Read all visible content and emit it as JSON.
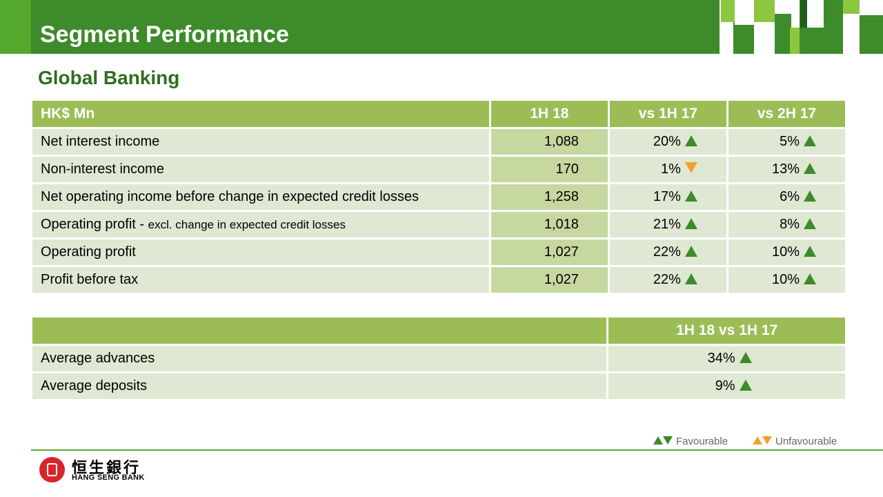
{
  "header": {
    "title": "Segment Performance",
    "subtitle": "Global Banking"
  },
  "colors": {
    "header_green": "#3d8b2a",
    "table_header": "#9cbc56",
    "favourable": "#3d8b2a",
    "unfavourable": "#f0a030"
  },
  "table1": {
    "headers": [
      "HK$ Mn",
      "1H 18",
      "vs 1H 17",
      "vs 2H 17"
    ],
    "rows": [
      {
        "label": "Net interest income",
        "label_note": "",
        "value": "1,088",
        "vs_1h17": "20%",
        "vs_1h17_dir": "up-favourable",
        "vs_2h17": "5%",
        "vs_2h17_dir": "up-favourable"
      },
      {
        "label": "Non-interest income",
        "label_note": "",
        "value": "170",
        "vs_1h17": "1%",
        "vs_1h17_dir": "down-unfavourable",
        "vs_2h17": "13%",
        "vs_2h17_dir": "up-favourable"
      },
      {
        "label": "Net operating income before change in expected credit losses",
        "label_note": "",
        "value": "1,258",
        "vs_1h17": "17%",
        "vs_1h17_dir": "up-favourable",
        "vs_2h17": "6%",
        "vs_2h17_dir": "up-favourable"
      },
      {
        "label": "Operating profit - ",
        "label_note": "excl. change in expected credit losses",
        "value": "1,018",
        "vs_1h17": "21%",
        "vs_1h17_dir": "up-favourable",
        "vs_2h17": "8%",
        "vs_2h17_dir": "up-favourable"
      },
      {
        "label": "Operating profit",
        "label_note": "",
        "value": "1,027",
        "vs_1h17": "22%",
        "vs_1h17_dir": "up-favourable",
        "vs_2h17": "10%",
        "vs_2h17_dir": "up-favourable"
      },
      {
        "label": "Profit before tax",
        "label_note": "",
        "value": "1,027",
        "vs_1h17": "22%",
        "vs_1h17_dir": "up-favourable",
        "vs_2h17": "10%",
        "vs_2h17_dir": "up-favourable"
      }
    ]
  },
  "table2": {
    "headers": [
      "",
      "1H 18 vs 1H 17"
    ],
    "rows": [
      {
        "label": "Average advances",
        "value": "34%",
        "dir": "up-favourable"
      },
      {
        "label": "Average deposits",
        "value": "9%",
        "dir": "up-favourable"
      }
    ]
  },
  "legend": {
    "favourable": "Favourable",
    "unfavourable": "Unfavourable"
  },
  "logo": {
    "chinese": "恒生銀行",
    "english": "HANG SENG BANK"
  }
}
